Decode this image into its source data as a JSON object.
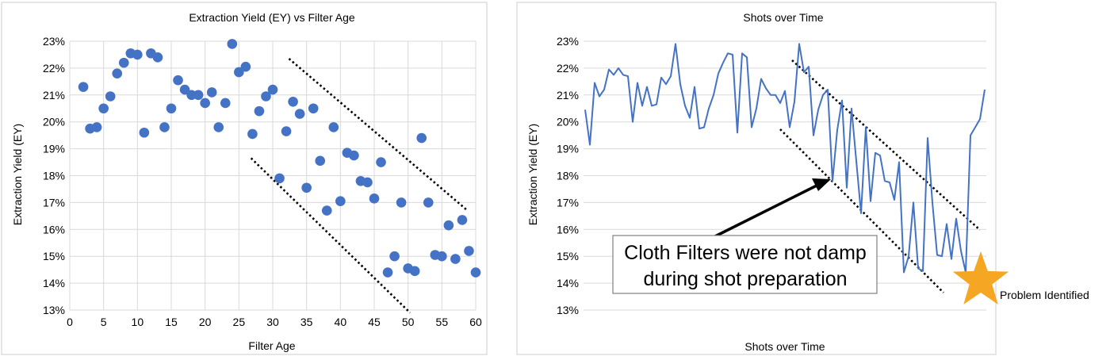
{
  "chart_data": [
    {
      "type": "scatter",
      "title": "Extraction Yield (EY) vs Filter Age",
      "xlabel": "Filter Age",
      "ylabel": "Extraction Yield (EY)",
      "xlim": [
        0,
        60
      ],
      "ylim": [
        13,
        23
      ],
      "x_ticks": [
        "0",
        "5",
        "10",
        "15",
        "20",
        "25",
        "30",
        "35",
        "40",
        "45",
        "50",
        "55",
        "60"
      ],
      "y_ticks": [
        "13%",
        "14%",
        "15%",
        "16%",
        "17%",
        "18%",
        "19%",
        "20%",
        "21%",
        "22%",
        "23%"
      ],
      "grid": "vertical and horizontal",
      "marker_color": "#4472c4",
      "points": [
        [
          2,
          21.3
        ],
        [
          3,
          19.75
        ],
        [
          4,
          19.8
        ],
        [
          5,
          20.5
        ],
        [
          6,
          20.95
        ],
        [
          7,
          21.8
        ],
        [
          8,
          22.2
        ],
        [
          9,
          22.55
        ],
        [
          10,
          22.5
        ],
        [
          11,
          19.6
        ],
        [
          12,
          22.55
        ],
        [
          13,
          22.4
        ],
        [
          14,
          19.8
        ],
        [
          15,
          20.5
        ],
        [
          16,
          21.55
        ],
        [
          17,
          21.2
        ],
        [
          18,
          21.0
        ],
        [
          19,
          21.0
        ],
        [
          20,
          20.7
        ],
        [
          21,
          21.1
        ],
        [
          22,
          19.8
        ],
        [
          23,
          20.7
        ],
        [
          24,
          22.9
        ],
        [
          25,
          21.85
        ],
        [
          26,
          22.05
        ],
        [
          27,
          19.55
        ],
        [
          28,
          20.4
        ],
        [
          29,
          20.95
        ],
        [
          30,
          21.2
        ],
        [
          31,
          17.9
        ],
        [
          32,
          19.65
        ],
        [
          33,
          20.75
        ],
        [
          34,
          20.3
        ],
        [
          35,
          17.55
        ],
        [
          36,
          20.5
        ],
        [
          37,
          18.55
        ],
        [
          38,
          16.7
        ],
        [
          39,
          19.8
        ],
        [
          40,
          17.05
        ],
        [
          41,
          18.85
        ],
        [
          42,
          18.75
        ],
        [
          43,
          17.8
        ],
        [
          44,
          17.75
        ],
        [
          45,
          17.15
        ],
        [
          46,
          18.5
        ],
        [
          47,
          14.4
        ],
        [
          48,
          15.0
        ],
        [
          49,
          17.0
        ],
        [
          50,
          14.55
        ],
        [
          51,
          14.45
        ],
        [
          52,
          19.4
        ],
        [
          53,
          17.0
        ],
        [
          54,
          15.05
        ],
        [
          55,
          15.0
        ],
        [
          56,
          16.15
        ],
        [
          57,
          14.9
        ],
        [
          58,
          16.35
        ],
        [
          59,
          15.2
        ],
        [
          60,
          14.4
        ]
      ],
      "trend_lines": [
        {
          "x1": 32.4,
          "y1": 22.35,
          "x2": 58.8,
          "y2": 16.7
        },
        {
          "x1": 26.8,
          "y1": 18.65,
          "x2": 50.3,
          "y2": 12.9
        }
      ]
    },
    {
      "type": "line",
      "title": "Shots over Time",
      "xlabel": "Shots over Time",
      "ylabel": "Extraction Yield (EY)",
      "ylim": [
        13,
        23
      ],
      "y_ticks": [
        "13%",
        "14%",
        "15%",
        "16%",
        "17%",
        "18%",
        "19%",
        "20%",
        "21%",
        "22%",
        "23%"
      ],
      "grid": "horizontal",
      "line_color": "#4472c4",
      "values": [
        20.45,
        19.15,
        21.45,
        20.95,
        21.2,
        21.95,
        21.75,
        22.0,
        21.75,
        21.7,
        20.0,
        21.45,
        20.6,
        21.3,
        20.6,
        20.65,
        21.65,
        21.4,
        21.7,
        22.9,
        21.4,
        20.6,
        20.15,
        21.3,
        19.75,
        19.8,
        20.5,
        21.0,
        21.8,
        22.2,
        22.55,
        22.5,
        19.6,
        22.55,
        22.4,
        19.8,
        20.5,
        21.6,
        21.25,
        21.0,
        21.0,
        20.7,
        21.15,
        19.8,
        20.75,
        22.9,
        21.85,
        22.05,
        19.5,
        20.45,
        21.0,
        21.2,
        17.8,
        19.7,
        20.8,
        17.55,
        20.5,
        18.55,
        16.6,
        19.8,
        17.05,
        18.85,
        18.75,
        17.8,
        17.75,
        17.1,
        18.5,
        14.4,
        15.0,
        17.0,
        14.55,
        14.45,
        19.4,
        17.0,
        15.05,
        15.0,
        16.2,
        14.9,
        16.4,
        15.2,
        14.4,
        19.5,
        19.8,
        20.1,
        21.2
      ],
      "trend_lines": [
        {
          "px1": 999,
          "py1": 76,
          "px2": 1236,
          "py2": 290
        },
        {
          "px1": 984,
          "py1": 163,
          "px2": 1190,
          "py2": 369
        }
      ],
      "annotation": {
        "text_line1": "Cloth Filters were not damp",
        "text_line2": "during shot preparation"
      },
      "marker": {
        "label": "Problem Identified",
        "color": "#f5a623"
      }
    }
  ]
}
